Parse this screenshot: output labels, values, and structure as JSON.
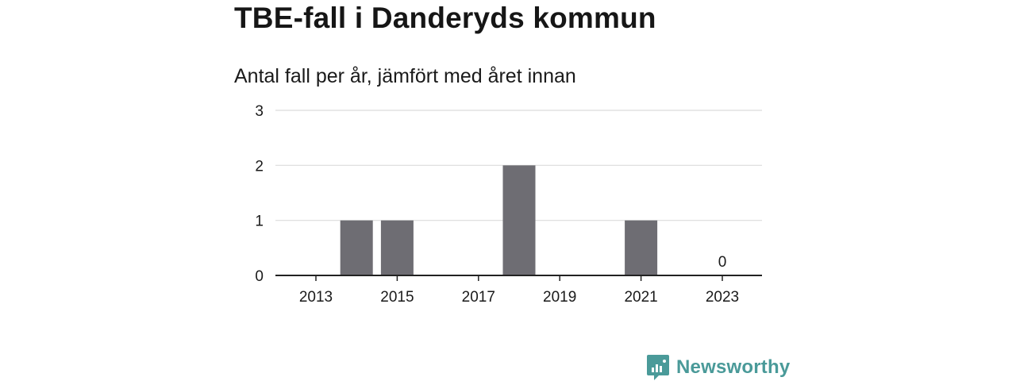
{
  "header": {
    "title": "TBE-fall i Danderyds kommun",
    "subtitle": "Antal fall per år, jämfört med året innan"
  },
  "brand": {
    "name": "Newsworthy",
    "color": "#4a9a99",
    "icon": "newsworthy-logo-icon"
  },
  "colors": {
    "bar": "#6e6d73",
    "grid": "#dcdcdc",
    "axis": "#222222"
  },
  "chart_data": {
    "type": "bar",
    "categories": [
      "2013",
      "2014",
      "2015",
      "2016",
      "2017",
      "2018",
      "2019",
      "2020",
      "2021",
      "2022",
      "2023"
    ],
    "values": [
      0,
      1,
      1,
      0,
      0,
      2,
      0,
      0,
      1,
      0,
      0
    ],
    "x_tick_labels": [
      "2013",
      "2015",
      "2017",
      "2019",
      "2021",
      "2023"
    ],
    "y_ticks": [
      0,
      1,
      2,
      3
    ],
    "ylim": [
      0,
      3
    ],
    "grid": true,
    "annotations": [
      {
        "category": "2023",
        "text": "0"
      }
    ]
  }
}
